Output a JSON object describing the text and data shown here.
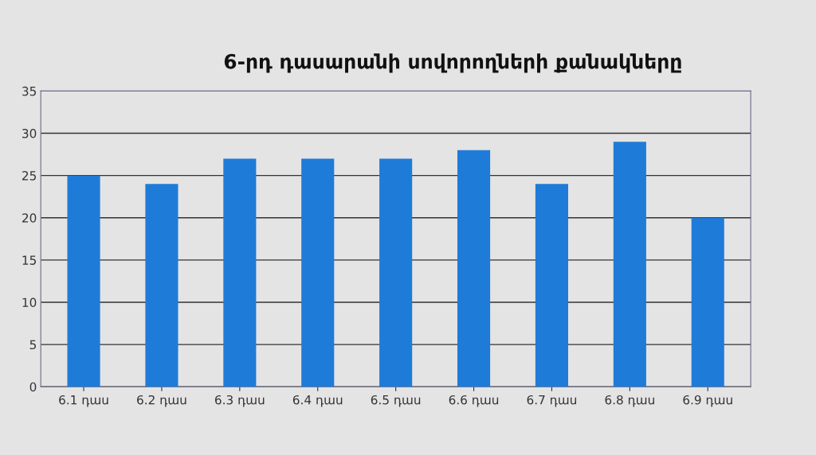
{
  "chart_data": {
    "type": "bar",
    "title": "6-րդ դասարանի սովորողների քանակները",
    "categories": [
      "6.1 դաս",
      "6.2 դաս",
      "6.3 դաս",
      "6.4 դաս",
      "6.5 դաս",
      "6.6 դաս",
      "6.7 դաս",
      "6.8 դաս",
      "6.9 դաս"
    ],
    "values": [
      25,
      24,
      27,
      27,
      27,
      28,
      24,
      29,
      20
    ],
    "color": "#1f7bd8",
    "ylim": [
      0,
      35
    ],
    "yticks": [
      0,
      5,
      10,
      15,
      20,
      25,
      30,
      35
    ],
    "grid": "y"
  }
}
